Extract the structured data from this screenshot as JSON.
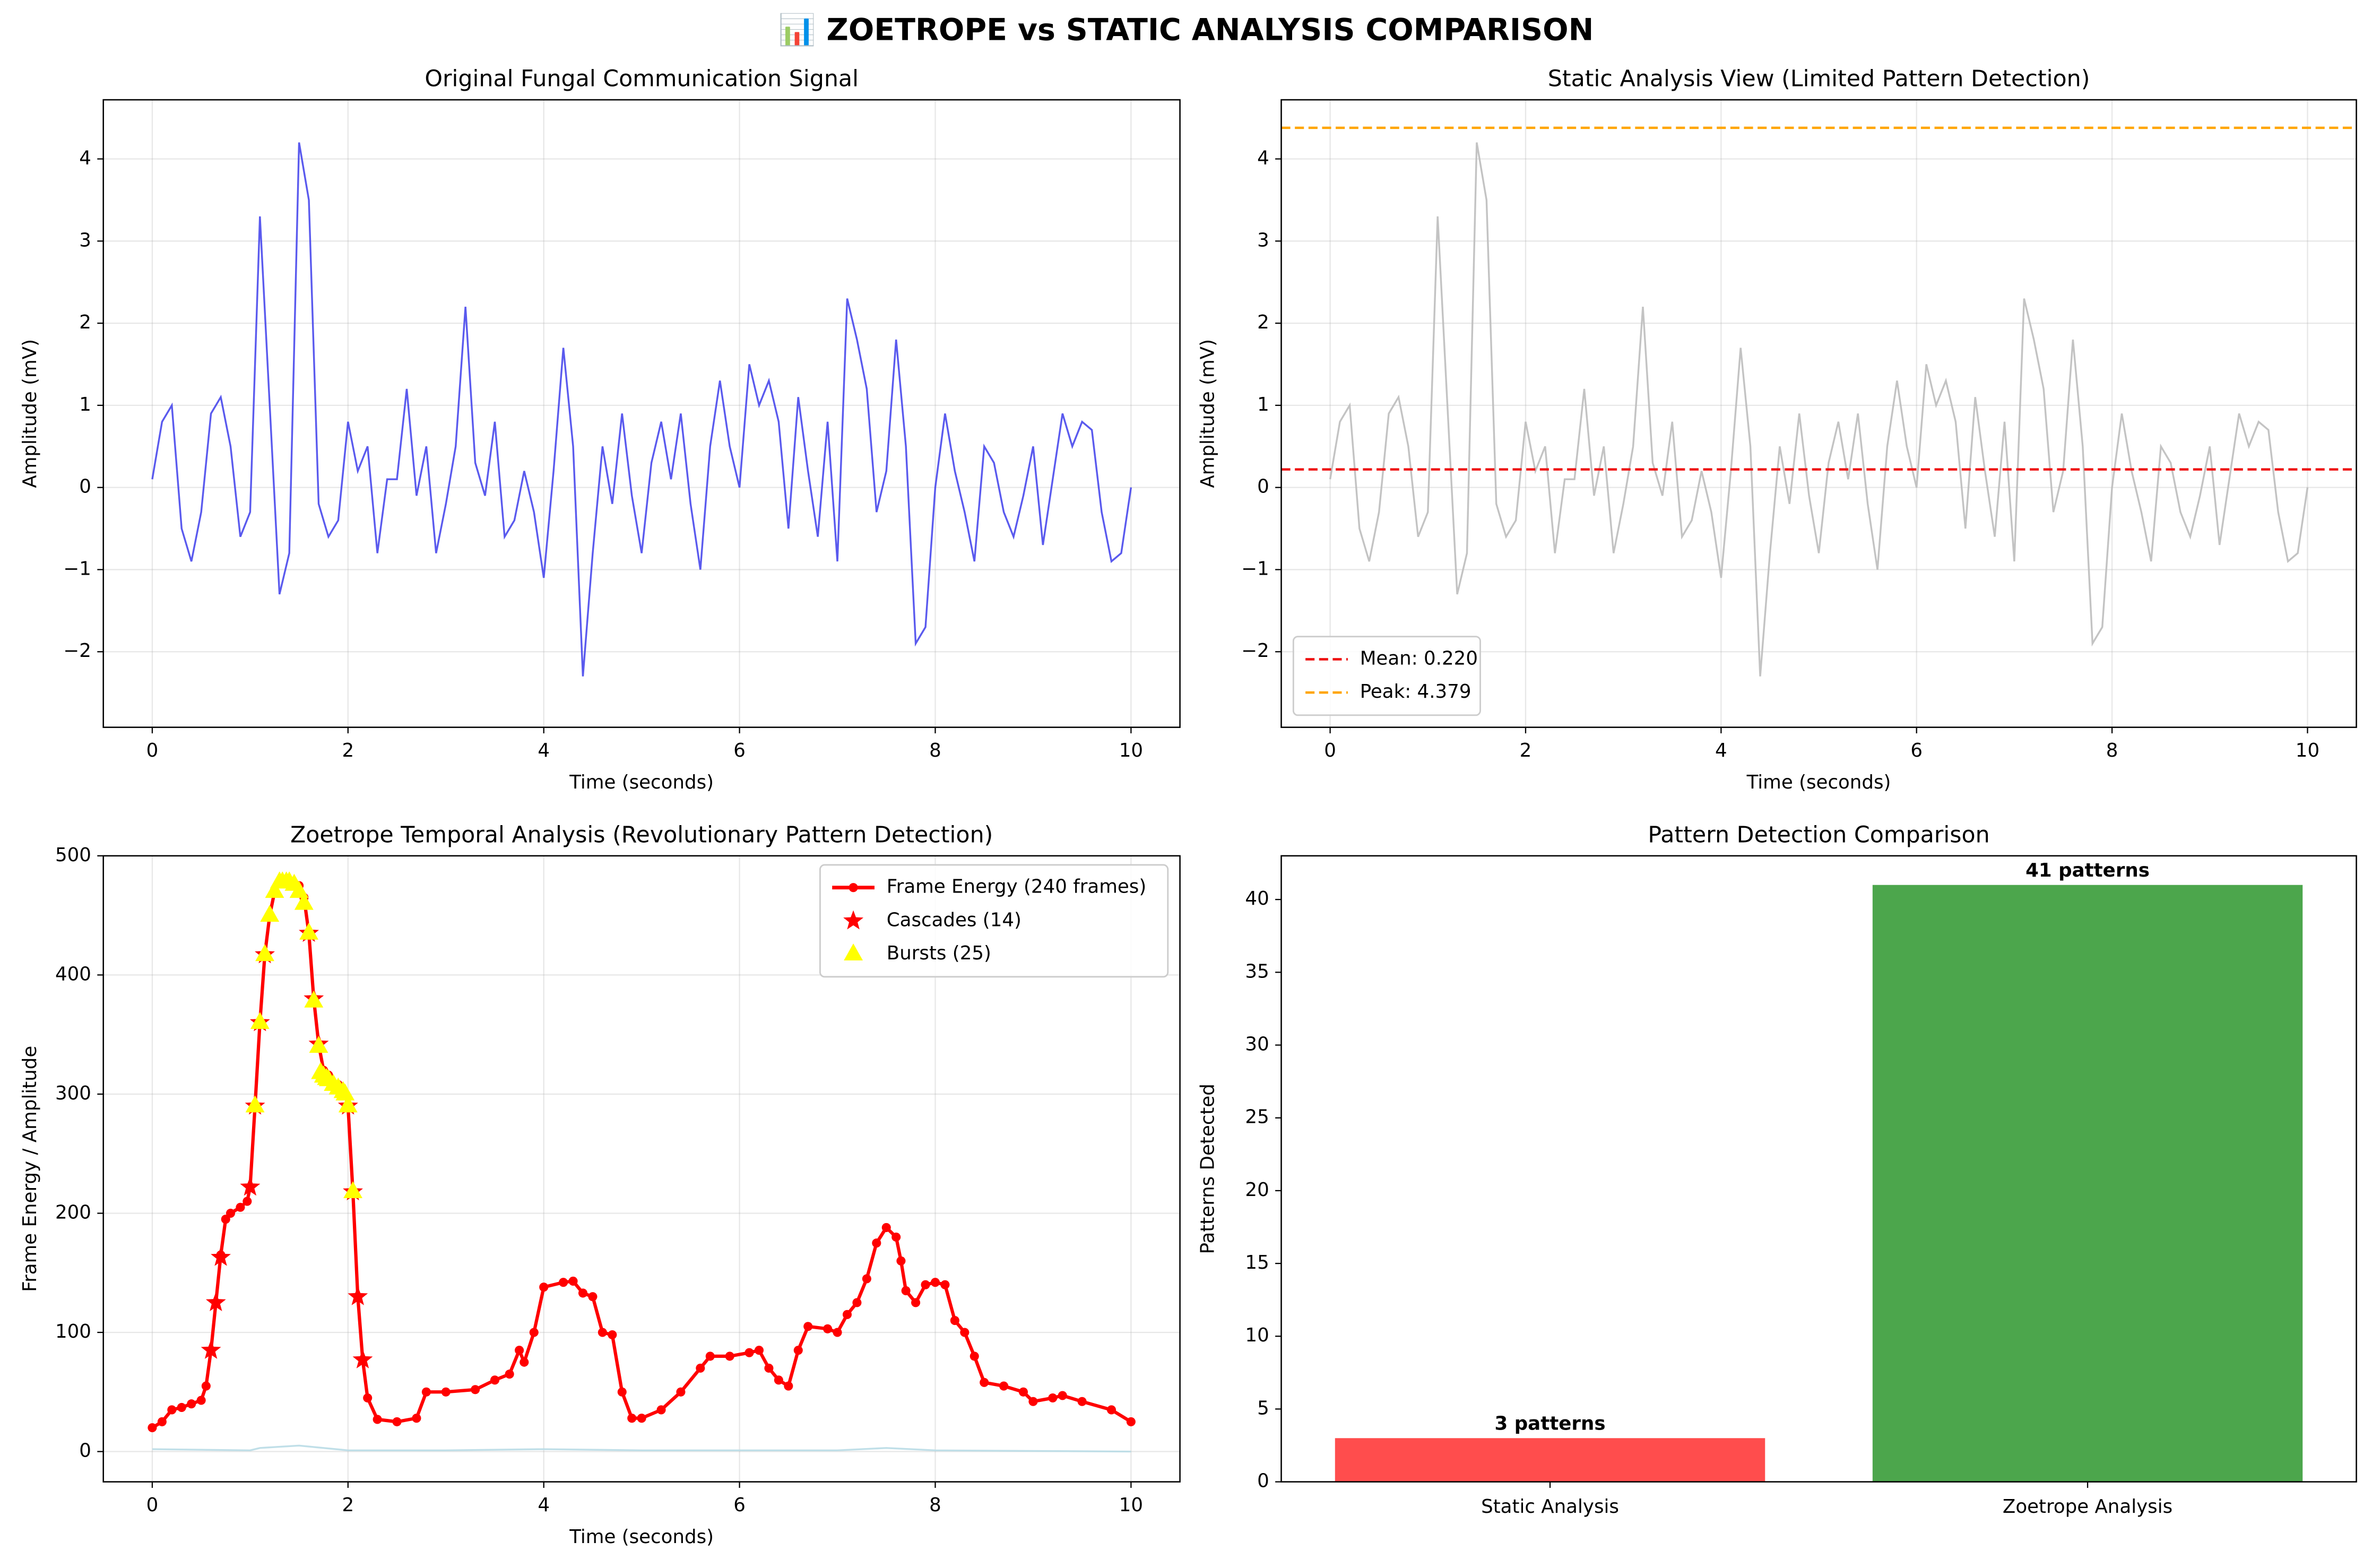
{
  "title": "📊 ZOETROPE vs STATIC ANALYSIS COMPARISON",
  "chart_data": [
    {
      "type": "line",
      "title": "Original Fungal Communication Signal",
      "xlabel": "Time (seconds)",
      "ylabel": "Amplitude (mV)",
      "grid": true,
      "xlim": [
        -0.5,
        10.5
      ],
      "ylim": [
        -2.92,
        4.72
      ],
      "xticks": [
        0,
        2,
        4,
        6,
        8,
        10
      ],
      "yticks": [
        {
          "value": -2,
          "label": "−2"
        },
        {
          "value": -1,
          "label": "−1"
        },
        0,
        1,
        2,
        3,
        4
      ],
      "x": [
        0,
        0.1,
        0.2,
        0.3,
        0.4,
        0.5,
        0.6,
        0.7,
        0.8,
        0.9,
        1,
        1.1,
        1.2,
        1.3,
        1.4,
        1.5,
        1.6,
        1.7,
        1.8,
        1.9,
        2,
        2.1,
        2.2,
        2.3,
        2.4,
        2.5,
        2.6,
        2.7,
        2.8,
        2.9,
        3,
        3.1,
        3.2,
        3.3,
        3.4,
        3.5,
        3.6,
        3.7,
        3.8,
        3.9,
        4,
        4.1,
        4.2,
        4.3,
        4.4,
        4.5,
        4.6,
        4.7,
        4.8,
        4.9,
        5,
        5.1,
        5.2,
        5.3,
        5.4,
        5.5,
        5.6,
        5.7,
        5.8,
        5.9,
        6,
        6.1,
        6.2,
        6.3,
        6.4,
        6.5,
        6.6,
        6.7,
        6.8,
        6.9,
        7,
        7.1,
        7.2,
        7.3,
        7.4,
        7.5,
        7.6,
        7.7,
        7.8,
        7.9,
        8,
        8.1,
        8.2,
        8.3,
        8.4,
        8.5,
        8.6,
        8.7,
        8.8,
        8.9,
        9,
        9.1,
        9.2,
        9.3,
        9.4,
        9.5,
        9.6,
        9.7,
        9.8,
        9.9,
        10
      ],
      "series": [
        {
          "color": "#4848ec",
          "values": [
            0.1,
            0.8,
            1.0,
            -0.5,
            -0.9,
            -0.3,
            0.9,
            1.1,
            0.5,
            -0.6,
            -0.3,
            3.3,
            1.0,
            -1.3,
            -0.8,
            4.2,
            3.5,
            -0.2,
            -0.6,
            -0.4,
            0.8,
            0.2,
            0.5,
            -0.8,
            0.1,
            0.1,
            1.2,
            -0.1,
            0.5,
            -0.8,
            -0.2,
            0.5,
            2.2,
            0.3,
            -0.1,
            0.8,
            -0.6,
            -0.4,
            0.2,
            -0.3,
            -1.1,
            0.2,
            1.7,
            0.5,
            -2.3,
            -0.8,
            0.5,
            -0.2,
            0.9,
            -0.1,
            -0.8,
            0.3,
            0.8,
            0.1,
            0.9,
            -0.2,
            -1.0,
            0.5,
            1.3,
            0.5,
            0.0,
            1.5,
            1.0,
            1.3,
            0.8,
            -0.5,
            1.1,
            0.2,
            -0.6,
            0.8,
            -0.9,
            2.3,
            1.8,
            1.2,
            -0.3,
            0.2,
            1.8,
            0.5,
            -1.9,
            -1.7,
            0.0,
            0.9,
            0.2,
            -0.3,
            -0.9,
            0.5,
            0.3,
            -0.3,
            -0.6,
            -0.1,
            0.5,
            -0.7,
            0.1,
            0.9,
            0.5,
            0.8,
            0.7,
            -0.3,
            -0.9,
            -0.8,
            0.0
          ]
        }
      ]
    },
    {
      "type": "line",
      "title": "Static Analysis View (Limited Pattern Detection)",
      "xlabel": "Time (seconds)",
      "ylabel": "Amplitude (mV)",
      "grid": true,
      "legend": "lower left",
      "xlim": [
        -0.5,
        10.5
      ],
      "ylim": [
        -2.92,
        4.72
      ],
      "xticks": [
        0,
        2,
        4,
        6,
        8,
        10
      ],
      "yticks": [
        {
          "value": -2,
          "label": "−2"
        },
        {
          "value": -1,
          "label": "−1"
        },
        0,
        1,
        2,
        3,
        4
      ],
      "x": [
        0,
        0.1,
        0.2,
        0.3,
        0.4,
        0.5,
        0.6,
        0.7,
        0.8,
        0.9,
        1,
        1.1,
        1.2,
        1.3,
        1.4,
        1.5,
        1.6,
        1.7,
        1.8,
        1.9,
        2,
        2.1,
        2.2,
        2.3,
        2.4,
        2.5,
        2.6,
        2.7,
        2.8,
        2.9,
        3,
        3.1,
        3.2,
        3.3,
        3.4,
        3.5,
        3.6,
        3.7,
        3.8,
        3.9,
        4,
        4.1,
        4.2,
        4.3,
        4.4,
        4.5,
        4.6,
        4.7,
        4.8,
        4.9,
        5,
        5.1,
        5.2,
        5.3,
        5.4,
        5.5,
        5.6,
        5.7,
        5.8,
        5.9,
        6,
        6.1,
        6.2,
        6.3,
        6.4,
        6.5,
        6.6,
        6.7,
        6.8,
        6.9,
        7,
        7.1,
        7.2,
        7.3,
        7.4,
        7.5,
        7.6,
        7.7,
        7.8,
        7.9,
        8,
        8.1,
        8.2,
        8.3,
        8.4,
        8.5,
        8.6,
        8.7,
        8.8,
        8.9,
        9,
        9.1,
        9.2,
        9.3,
        9.4,
        9.5,
        9.6,
        9.7,
        9.8,
        9.9,
        10
      ],
      "series": [
        {
          "color": "#bdbdbd",
          "values": [
            0.1,
            0.8,
            1.0,
            -0.5,
            -0.9,
            -0.3,
            0.9,
            1.1,
            0.5,
            -0.6,
            -0.3,
            3.3,
            1.0,
            -1.3,
            -0.8,
            4.2,
            3.5,
            -0.2,
            -0.6,
            -0.4,
            0.8,
            0.2,
            0.5,
            -0.8,
            0.1,
            0.1,
            1.2,
            -0.1,
            0.5,
            -0.8,
            -0.2,
            0.5,
            2.2,
            0.3,
            -0.1,
            0.8,
            -0.6,
            -0.4,
            0.2,
            -0.3,
            -1.1,
            0.2,
            1.7,
            0.5,
            -2.3,
            -0.8,
            0.5,
            -0.2,
            0.9,
            -0.1,
            -0.8,
            0.3,
            0.8,
            0.1,
            0.9,
            -0.2,
            -1.0,
            0.5,
            1.3,
            0.5,
            0.0,
            1.5,
            1.0,
            1.3,
            0.8,
            -0.5,
            1.1,
            0.2,
            -0.6,
            0.8,
            -0.9,
            2.3,
            1.8,
            1.2,
            -0.3,
            0.2,
            1.8,
            0.5,
            -1.9,
            -1.7,
            0.0,
            0.9,
            0.2,
            -0.3,
            -0.9,
            0.5,
            0.3,
            -0.3,
            -0.6,
            -0.1,
            0.5,
            -0.7,
            0.1,
            0.9,
            0.5,
            0.8,
            0.7,
            -0.3,
            -0.9,
            -0.8,
            0.0
          ]
        }
      ],
      "hlines": [
        {
          "name": "Mean: 0.220",
          "value": 0.22,
          "color": "#ee1111"
        },
        {
          "name": "Peak: 4.379",
          "value": 4.379,
          "color": "#ffa500"
        }
      ]
    },
    {
      "type": "line",
      "title": "Zoetrope Temporal Analysis (Revolutionary Pattern Detection)",
      "xlabel": "Time (seconds)",
      "ylabel": "Frame Energy / Amplitude",
      "grid": true,
      "legend": "upper right",
      "xlim": [
        -0.5,
        10.5
      ],
      "ylim": [
        -25.4,
        500
      ],
      "xticks": [
        0,
        2,
        4,
        6,
        8,
        10
      ],
      "yticks": [
        0,
        100,
        200,
        300,
        400,
        500
      ],
      "series": [
        {
          "color": "#b9dce6",
          "x": [
            0,
            1,
            1.1,
            1.5,
            2,
            3,
            4,
            5,
            6,
            7,
            7.5,
            8,
            10
          ],
          "values": [
            2,
            1,
            3,
            5,
            1,
            1,
            2,
            1,
            1,
            1,
            3,
            1,
            0
          ]
        },
        {
          "name": "Frame Energy (240 frames)",
          "color": "#ff0000",
          "marker": "circle",
          "x": [
            0,
            0.1,
            0.2,
            0.3,
            0.4,
            0.5,
            0.55,
            0.6,
            0.65,
            0.7,
            0.75,
            0.8,
            0.9,
            0.97,
            1,
            1.05,
            1.1,
            1.15,
            1.2,
            1.25,
            1.3,
            1.4,
            1.5,
            1.55,
            1.6,
            1.65,
            1.7,
            1.75,
            1.8,
            1.9,
            1.97,
            2,
            2.05,
            2.1,
            2.15,
            2.2,
            2.3,
            2.5,
            2.7,
            2.8,
            3,
            3.3,
            3.5,
            3.65,
            3.75,
            3.8,
            3.9,
            4,
            4.2,
            4.3,
            4.4,
            4.5,
            4.6,
            4.7,
            4.8,
            4.9,
            5,
            5.2,
            5.4,
            5.6,
            5.7,
            5.9,
            6.1,
            6.2,
            6.3,
            6.4,
            6.5,
            6.6,
            6.7,
            6.9,
            7,
            7.1,
            7.2,
            7.3,
            7.4,
            7.5,
            7.6,
            7.65,
            7.7,
            7.8,
            7.9,
            8,
            8.1,
            8.2,
            8.3,
            8.4,
            8.5,
            8.7,
            8.9,
            9,
            9.2,
            9.3,
            9.5,
            9.8,
            10
          ],
          "values": [
            20,
            25,
            35,
            37,
            40,
            43,
            55,
            85,
            125,
            165,
            195,
            200,
            205,
            210,
            222,
            290,
            360,
            417,
            450,
            470,
            477,
            477,
            475,
            465,
            435,
            380,
            342,
            320,
            316,
            308,
            300,
            290,
            218,
            130,
            77,
            45,
            27,
            25,
            28,
            50,
            50,
            52,
            60,
            65,
            85,
            75,
            100,
            138,
            142,
            143,
            133,
            130,
            100,
            98,
            50,
            28,
            28,
            35,
            50,
            70,
            80,
            80,
            83,
            85,
            70,
            60,
            55,
            85,
            105,
            103,
            100,
            115,
            125,
            145,
            175,
            188,
            180,
            160,
            135,
            125,
            140,
            142,
            140,
            110,
            100,
            80,
            58,
            55,
            50,
            42,
            45,
            47,
            42,
            35,
            25
          ]
        },
        {
          "name": "Cascades (14)",
          "color": "#ff0000",
          "type": "scatter",
          "marker": "star",
          "x": [
            0.6,
            0.65,
            0.7,
            1,
            1.05,
            1.1,
            1.15,
            1.6,
            1.65,
            1.7,
            2,
            2.05,
            2.1,
            2.15
          ],
          "values": [
            85,
            125,
            163,
            222,
            290,
            360,
            417,
            435,
            380,
            342,
            290,
            218,
            130,
            77
          ]
        },
        {
          "name": "Bursts (25)",
          "color": "#ffff00",
          "type": "scatter",
          "marker": "triangle",
          "x": [
            1.05,
            1.1,
            1.15,
            1.2,
            1.25,
            1.3,
            1.33,
            1.37,
            1.4,
            1.45,
            1.5,
            1.55,
            1.6,
            1.65,
            1.7,
            1.72,
            1.75,
            1.78,
            1.8,
            1.85,
            1.9,
            1.95,
            1.97,
            2,
            2.05
          ],
          "values": [
            290,
            360,
            417,
            450,
            470,
            478,
            478,
            478,
            478,
            476,
            470,
            460,
            435,
            378,
            340,
            318,
            315,
            313,
            312,
            308,
            305,
            302,
            300,
            290,
            218
          ]
        }
      ]
    },
    {
      "type": "bar",
      "title": "Pattern Detection Comparison",
      "ylabel": "Patterns Detected",
      "grid": false,
      "categories": [
        "Static Analysis",
        "Zoetrope Analysis"
      ],
      "values": [
        3,
        41
      ],
      "value_labels": [
        "3 patterns",
        "41 patterns"
      ],
      "colors": [
        "#ff4d4d",
        "#4ca64c"
      ],
      "ylim": [
        0,
        43.0
      ],
      "yticks": [
        0,
        5,
        10,
        15,
        20,
        25,
        30,
        35,
        40
      ]
    }
  ]
}
